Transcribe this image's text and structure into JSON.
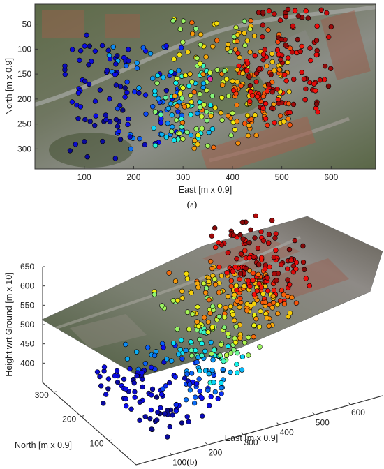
{
  "colors": {
    "low": "#0b1a8c",
    "mid_low": "#2f8fe8",
    "mid": "#9be35a",
    "mid_high": "#ffcc1a",
    "high": "#c00a0a",
    "outlier": "#e0359a"
  },
  "chart_data": [
    {
      "panel": "a",
      "type": "scatter",
      "caption": "(a)",
      "xlabel": "East [m x 0.9]",
      "ylabel": "North [m x 0.9]",
      "xlim": [
        0,
        690
      ],
      "ylim": [
        340,
        10
      ],
      "y_reversed": true,
      "xticks": [
        100,
        200,
        300,
        400,
        500,
        600
      ],
      "yticks": [
        50,
        100,
        150,
        200,
        250,
        300
      ],
      "background": "aerial-photo",
      "color_encoding": "height (blue = low, red = high)",
      "clusters": [
        {
          "x": [
            60,
            190
          ],
          "y": [
            70,
            320
          ],
          "count": 60,
          "color_range": [
            0.0,
            0.12
          ]
        },
        {
          "x": [
            150,
            300
          ],
          "y": [
            90,
            310
          ],
          "count": 70,
          "color_range": [
            0.05,
            0.3
          ]
        },
        {
          "x": [
            240,
            360
          ],
          "y": [
            130,
            300
          ],
          "count": 60,
          "color_range": [
            0.25,
            0.55
          ]
        },
        {
          "x": [
            280,
            450
          ],
          "y": [
            40,
            300
          ],
          "count": 110,
          "color_range": [
            0.5,
            0.78
          ]
        },
        {
          "x": [
            400,
            520
          ],
          "y": [
            60,
            260
          ],
          "count": 90,
          "color_range": [
            0.65,
            0.9
          ]
        },
        {
          "x": [
            430,
            600
          ],
          "y": [
            20,
            230
          ],
          "count": 100,
          "color_range": [
            0.85,
            1.0
          ]
        }
      ]
    },
    {
      "panel": "b",
      "type": "scatter",
      "subtype": "3d-scatter-with-textured-surface",
      "caption": "(b)",
      "xlabel": "East [m x 0.9]",
      "ylabel": "North [m x 0.9]",
      "zlabel": "Height wrt Ground [m x 10]",
      "xlim": [
        0,
        690
      ],
      "ylim": [
        0,
        340
      ],
      "zlim": [
        350,
        650
      ],
      "xticks": [
        100,
        200,
        300,
        400,
        500,
        600
      ],
      "yticks": [
        100,
        200,
        300
      ],
      "zticks": [
        400,
        450,
        500,
        550,
        600,
        650
      ],
      "background": "terrain-surface",
      "color_encoding": "height (blue = low, red = high)"
    }
  ]
}
